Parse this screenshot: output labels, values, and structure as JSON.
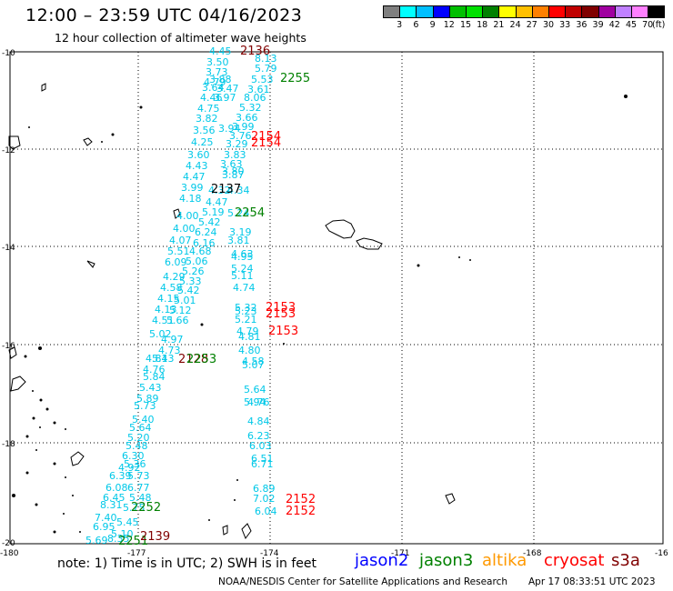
{
  "title": "12:00 – 23:59 UTC 04/16/2023",
  "subtitle": "12 hour collection of altimeter wave heights",
  "colorbar": {
    "labels": [
      "3",
      "6",
      "9",
      "12",
      "15",
      "18",
      "21",
      "24",
      "27",
      "30",
      "33",
      "36",
      "39",
      "42",
      "45",
      "70"
    ],
    "unit": "(ft)",
    "colors": [
      "#7f7f7f",
      "#00ffff",
      "#00bfff",
      "#0000ff",
      "#00bf00",
      "#00e000",
      "#008000",
      "#ffff00",
      "#ffc000",
      "#ff8000",
      "#ff0000",
      "#c00000",
      "#800000",
      "#a000a0",
      "#c080ff",
      "#ff80ff",
      "#000000"
    ]
  },
  "map": {
    "lat_labels": [
      "-10",
      "-12",
      "-14",
      "-16",
      "-18",
      "-20"
    ],
    "lon_labels": [
      "-180",
      "-177",
      "-174",
      "-171",
      "-168",
      "-16"
    ],
    "track_color": "#00c8e8"
  },
  "wave_heights": [
    "4.45",
    "3.50",
    "8.13",
    "3.73",
    "5.79",
    "4.79",
    "5.53",
    "3.88",
    "3.61",
    "3.64",
    "3.47",
    "4.46",
    "3.97",
    "8.06",
    "4.75",
    "5.32",
    "3.82",
    "3.66",
    "3.99",
    "3.56",
    "3.94",
    "3.76",
    "4.25",
    "3.29",
    "3.60",
    "3.83",
    "4.43",
    "3.63",
    "3.80",
    "4.47",
    "3.87",
    "3.99",
    "4.32",
    "4.34",
    "4.18",
    "4.47",
    "5.19",
    "5.24",
    "4.00",
    "5.42",
    "4.00",
    "6.24",
    "3.19",
    "4.07",
    "6.16",
    "3.81",
    "5.51",
    "4.68",
    "4.63",
    "6.09",
    "5.06",
    "4.95",
    "5.26",
    "5.24",
    "4.29",
    "5.33",
    "5.11",
    "4.58",
    "5.42",
    "4.74",
    "4.15",
    "5.01",
    "5.32",
    "4.13",
    "5.12",
    "5.23",
    "4.51",
    "5.66",
    "5.21",
    "5.02",
    "4.79",
    "4.97",
    "4.81",
    "4.73",
    "4.80",
    "4.81",
    "5.43",
    "4.58",
    "4.76",
    "5.07",
    "5.84",
    "5.64",
    "5.43",
    "5.94",
    "5.89",
    "4.76",
    "5.73",
    "5.40",
    "4.84",
    "5.64",
    "6.23",
    "5.20",
    "6.03",
    "5.48",
    "6.30",
    "5.36",
    "6.51",
    "4.92",
    "6.71",
    "6.39",
    "5.73",
    "6.08",
    "6.77",
    "6.89",
    "6.45",
    "5.48",
    "7.02",
    "8.31",
    "5.75",
    "6.04",
    "7.40",
    "6.95",
    "5.45",
    "5.10",
    "8.35",
    "5.69"
  ],
  "times": [
    "2136",
    "2255",
    "2154",
    "2154",
    "2137",
    "2254",
    "2153",
    "2153",
    "2153",
    "2128",
    "2253",
    "2252",
    "2152",
    "2152",
    "2251",
    "2139"
  ],
  "note": "note:  1) Time is in UTC; 2) SWH is in feet",
  "satellites": [
    {
      "name": "jason2",
      "color": "#0000ff"
    },
    {
      "name": "jason3",
      "color": "#008000"
    },
    {
      "name": "altika",
      "color": "#ff9900"
    },
    {
      "name": "cryosat",
      "color": "#ff0000"
    },
    {
      "name": "s3a",
      "color": "#800000"
    }
  ],
  "credit": "NOAA/NESDIS Center for Satellite Applications and Research",
  "timestamp": "Apr 17 08:33:51 UTC 2023"
}
